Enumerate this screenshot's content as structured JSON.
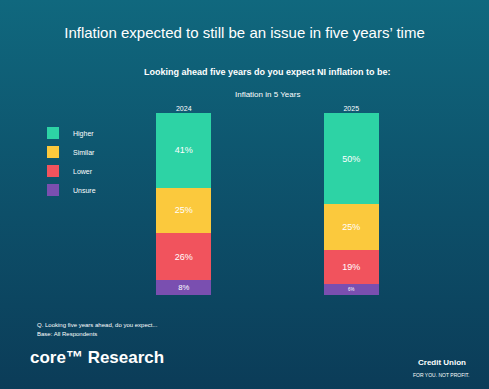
{
  "chart_data": {
    "type": "bar",
    "title": "Inflation expected to still be an issue in five years’ time",
    "subtitle": "Looking ahead five years do you expect NI inflation to be:",
    "annotations": [
      "Inflation in 5 Years",
      "Q. Looking five years ahead, do you expect...",
      "Base: All Respondents",
      "core™ Research",
      "Credit Union",
      "FOR YOU. NOT PROFIT."
    ],
    "categories": [
      "2024",
      "2025"
    ],
    "series": [
      {
        "name": "Higher",
        "color": "#2dd3a5",
        "values": [
          41,
          50
        ],
        "value_labels": [
          "41%",
          "50%"
        ]
      },
      {
        "name": "Similar",
        "color": "#fbc93d",
        "values": [
          25,
          25
        ],
        "value_labels": [
          "25%",
          "25%"
        ]
      },
      {
        "name": "Lower",
        "color": "#f1535d",
        "values": [
          26,
          19
        ],
        "value_labels": [
          "26%",
          "19%"
        ]
      },
      {
        "name": "Unsure",
        "color": "#7a4fb0",
        "values": [
          8,
          6
        ],
        "value_labels": [
          "8%",
          "6%"
        ]
      }
    ],
    "stacked": true,
    "data_labels": true,
    "legend": "left",
    "tick_labels": "x",
    "ylim": [
      0,
      100
    ],
    "yticks": [
      0,
      100
    ],
    "grid": true
  }
}
